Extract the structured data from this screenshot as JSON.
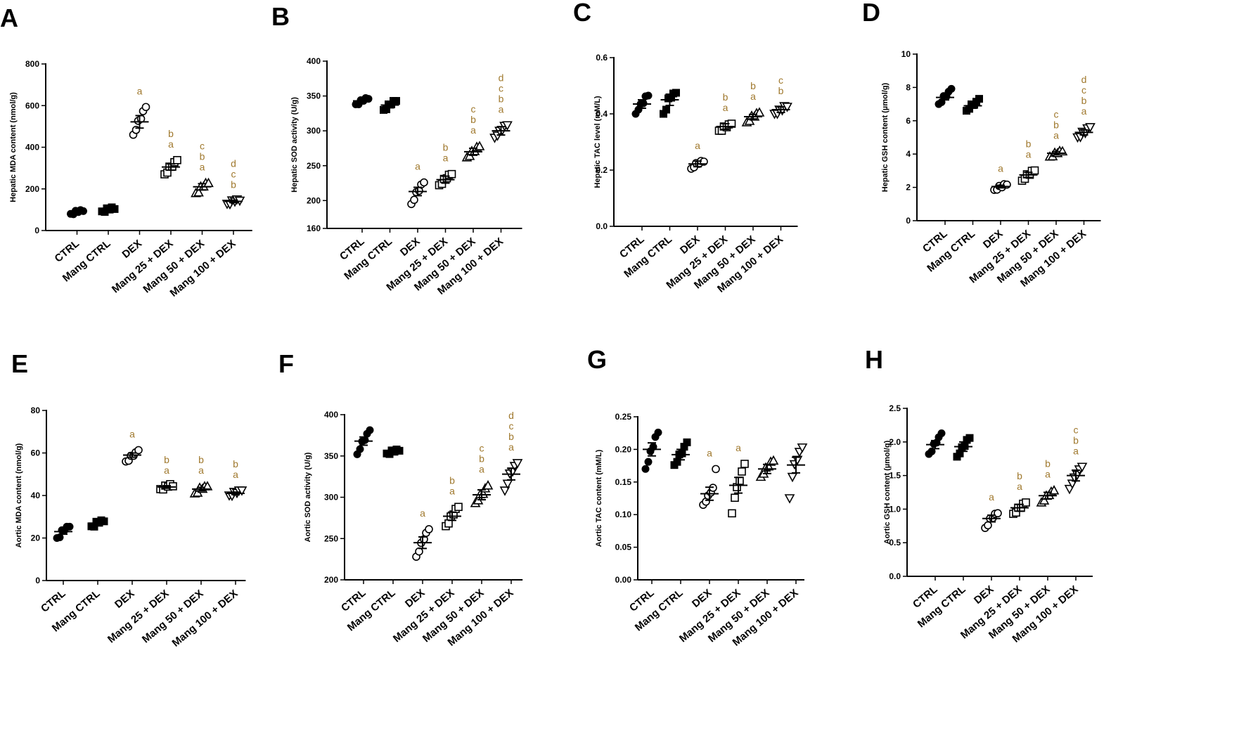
{
  "figure": {
    "colors": {
      "axis": "#000000",
      "significance": "#a0792e",
      "filled": "#000000",
      "open": "#ffffff"
    },
    "group_markers": [
      "filled-circle",
      "filled-square",
      "open-circle",
      "open-square",
      "open-triangle",
      "open-triangle-down"
    ]
  },
  "chart_data": [
    {
      "letter": "A",
      "type": "scatter",
      "ylabel": "Hepatic MDA content (nmol/g)",
      "ylim": [
        0,
        800
      ],
      "yticks": [
        "0",
        "200",
        "400",
        "600",
        "800"
      ],
      "categories": [
        "CTRL",
        "Mang CTRL",
        "DEX",
        "Mang 25 + DEX",
        "Mang 50 + DEX",
        "Mang 100 + DEX"
      ],
      "means": [
        90,
        100,
        522,
        305,
        210,
        140
      ],
      "sem": [
        6,
        5,
        30,
        15,
        15,
        6
      ],
      "points": [
        [
          80,
          85,
          88,
          92,
          95,
          100
        ],
        [
          92,
          96,
          100,
          104,
          108,
          110
        ],
        [
          460,
          490,
          520,
          540,
          570,
          600
        ],
        [
          270,
          285,
          300,
          310,
          325,
          345
        ],
        [
          180,
          190,
          205,
          215,
          225,
          235
        ],
        [
          128,
          133,
          138,
          142,
          146,
          150
        ]
      ],
      "labels": [
        [],
        [],
        [
          "a"
        ],
        [
          "b",
          "a"
        ],
        [
          "c",
          "b",
          "a"
        ],
        [
          "d",
          "c",
          "b"
        ]
      ]
    },
    {
      "letter": "B",
      "type": "scatter",
      "ylabel": "Hepatic SOD activity (U/g)",
      "ylim": [
        160,
        400
      ],
      "yticks": [
        "160",
        "200",
        "250",
        "300",
        "350",
        "400"
      ],
      "categories": [
        "CTRL",
        "Mang CTRL",
        "DEX",
        "Mang 25 + DEX",
        "Mang 50 + DEX",
        "Mang 100 + DEX"
      ],
      "means": [
        343,
        337,
        213,
        230,
        270,
        300
      ],
      "sem": [
        3,
        4,
        6,
        5,
        5,
        6
      ],
      "points": [
        [
          338,
          340,
          342,
          344,
          346,
          348
        ],
        [
          330,
          333,
          336,
          339,
          342,
          345
        ],
        [
          195,
          203,
          210,
          215,
          222,
          228
        ],
        [
          222,
          226,
          229,
          233,
          236,
          240
        ],
        [
          262,
          266,
          269,
          272,
          276,
          280
        ],
        [
          290,
          295,
          298,
          302,
          306,
          310
        ]
      ],
      "labels": [
        [],
        [],
        [
          "a"
        ],
        [
          "b",
          "a"
        ],
        [
          "c",
          "b",
          "a"
        ],
        [
          "d",
          "c",
          "b",
          "a"
        ]
      ]
    },
    {
      "letter": "C",
      "type": "scatter",
      "ylabel": "Hepatic TAC level (mM/L)",
      "ylim": [
        0,
        0.6
      ],
      "yticks": [
        "0.0",
        "0.2",
        "0.4",
        "0.6"
      ],
      "categories": [
        "CTRL",
        "Mang CTRL",
        "DEX",
        "Mang 25 + DEX",
        "Mang 50 + DEX",
        "Mang 100 + DEX"
      ],
      "means": [
        0.435,
        0.45,
        0.222,
        0.355,
        0.39,
        0.415
      ],
      "sem": [
        0.015,
        0.02,
        0.01,
        0.01,
        0.008,
        0.01
      ],
      "points": [
        [
          0.4,
          0.42,
          0.43,
          0.44,
          0.46,
          0.47
        ],
        [
          0.4,
          0.42,
          0.45,
          0.46,
          0.47,
          0.48
        ],
        [
          0.205,
          0.215,
          0.22,
          0.225,
          0.23,
          0.235
        ],
        [
          0.34,
          0.345,
          0.35,
          0.355,
          0.36,
          0.37
        ],
        [
          0.37,
          0.38,
          0.388,
          0.393,
          0.4,
          0.41
        ],
        [
          0.4,
          0.405,
          0.41,
          0.415,
          0.425,
          0.43
        ]
      ],
      "labels": [
        [],
        [],
        [
          "a"
        ],
        [
          "b",
          "a"
        ],
        [
          "b",
          "a"
        ],
        [
          "c",
          "b"
        ]
      ]
    },
    {
      "letter": "D",
      "type": "scatter",
      "ylabel": "Hepatic GSH content (µmol/g)",
      "ylim": [
        0,
        10
      ],
      "yticks": [
        "0",
        "2",
        "4",
        "6",
        "8",
        "10"
      ],
      "categories": [
        "CTRL",
        "Mang CTRL",
        "DEX",
        "Mang 25 + DEX",
        "Mang 50 + DEX",
        "Mang 100 + DEX"
      ],
      "means": [
        7.4,
        6.9,
        2.05,
        2.75,
        4.05,
        5.3
      ],
      "sem": [
        0.15,
        0.15,
        0.08,
        0.15,
        0.1,
        0.15
      ],
      "points": [
        [
          7.0,
          7.2,
          7.4,
          7.5,
          7.7,
          8.0
        ],
        [
          6.6,
          6.8,
          6.9,
          7.0,
          7.1,
          7.4
        ],
        [
          1.85,
          1.95,
          2.0,
          2.05,
          2.15,
          2.25
        ],
        [
          2.4,
          2.6,
          2.7,
          2.8,
          2.95,
          3.1
        ],
        [
          3.85,
          3.95,
          4.0,
          4.1,
          4.15,
          4.25
        ],
        [
          5.0,
          5.1,
          5.25,
          5.3,
          5.5,
          5.7
        ]
      ],
      "labels": [
        [],
        [],
        [
          "a"
        ],
        [
          "b",
          "a"
        ],
        [
          "c",
          "b",
          "a"
        ],
        [
          "d",
          "c",
          "b",
          "a"
        ]
      ]
    },
    {
      "letter": "E",
      "type": "scatter",
      "ylabel": "Aortic MDA content (nmol/g)",
      "ylim": [
        0,
        80
      ],
      "yticks": [
        "0",
        "20",
        "40",
        "60",
        "80"
      ],
      "categories": [
        "CTRL",
        "Mang CTRL",
        "DEX",
        "Mang 25 + DEX",
        "Mang 50 + DEX",
        "Mang 100 + DEX"
      ],
      "means": [
        23,
        27,
        59,
        44,
        43,
        41
      ],
      "sem": [
        1.2,
        0.8,
        1.0,
        0.6,
        0.8,
        0.6
      ],
      "points": [
        [
          20,
          21,
          23,
          24,
          25,
          26
        ],
        [
          25.5,
          26,
          27,
          27.5,
          28,
          28.5
        ],
        [
          56,
          57,
          58,
          59,
          60,
          62
        ],
        [
          43,
          43.5,
          44,
          44.5,
          45,
          45
        ],
        [
          41,
          42,
          43,
          43.5,
          44,
          45
        ],
        [
          40,
          40.5,
          41,
          41.5,
          42,
          43
        ]
      ],
      "labels": [
        [],
        [],
        [
          "a"
        ],
        [
          "b",
          "a"
        ],
        [
          "b",
          "a"
        ],
        [
          "b",
          "a"
        ]
      ]
    },
    {
      "letter": "F",
      "type": "scatter",
      "ylabel": "Aortic SOD activity (U/g)",
      "ylim": [
        200,
        400
      ],
      "yticks": [
        "200",
        "250",
        "300",
        "350",
        "400"
      ],
      "categories": [
        "CTRL",
        "Mang CTRL",
        "DEX",
        "Mang 25 + DEX",
        "Mang 50 + DEX",
        "Mang 100 + DEX"
      ],
      "means": [
        368,
        355,
        245,
        277,
        303,
        328
      ],
      "sem": [
        5,
        2,
        7,
        5,
        6,
        7
      ],
      "points": [
        [
          352,
          360,
          366,
          370,
          376,
          383
        ],
        [
          353,
          354,
          355,
          356,
          357,
          358
        ],
        [
          228,
          236,
          243,
          250,
          256,
          263
        ],
        [
          265,
          270,
          275,
          280,
          285,
          290
        ],
        [
          293,
          298,
          302,
          305,
          310,
          316
        ],
        [
          308,
          318,
          327,
          332,
          337,
          343
        ]
      ],
      "labels": [
        [],
        [],
        [
          "a"
        ],
        [
          "b",
          "a"
        ],
        [
          "c",
          "b",
          "a"
        ],
        [
          "d",
          "c",
          "b",
          "a"
        ]
      ]
    },
    {
      "letter": "G",
      "type": "scatter",
      "ylabel": "Aortic TAC content (mM/L)",
      "ylim": [
        0,
        0.25
      ],
      "yticks": [
        "0.00",
        "0.05",
        "0.10",
        "0.15",
        "0.20",
        "0.25"
      ],
      "categories": [
        "CTRL",
        "Mang CTRL",
        "DEX",
        "Mang 25 + DEX",
        "Mang 50 + DEX",
        "Mang 100 + DEX"
      ],
      "means": [
        0.2,
        0.192,
        0.132,
        0.145,
        0.17,
        0.176
      ],
      "sem": [
        0.01,
        0.008,
        0.01,
        0.012,
        0.007,
        0.012
      ],
      "points": [
        [
          0.17,
          0.183,
          0.195,
          0.205,
          0.218,
          0.228
        ],
        [
          0.176,
          0.183,
          0.19,
          0.195,
          0.203,
          0.213
        ],
        [
          0.115,
          0.122,
          0.127,
          0.135,
          0.14,
          0.172
        ],
        [
          0.102,
          0.128,
          0.14,
          0.153,
          0.165,
          0.18
        ],
        [
          0.158,
          0.165,
          0.17,
          0.175,
          0.18,
          0.185
        ],
        [
          0.125,
          0.16,
          0.175,
          0.185,
          0.195,
          0.205
        ]
      ],
      "labels": [
        [],
        [],
        [
          "a"
        ],
        [
          "a"
        ],
        [],
        []
      ]
    },
    {
      "letter": "H",
      "type": "scatter",
      "ylabel": "Aortic GSH content (µmol/g)",
      "ylim": [
        0,
        2.5
      ],
      "yticks": [
        "0.0",
        "0.5",
        "1.0",
        "1.5",
        "2.0",
        "2.5"
      ],
      "categories": [
        "CTRL",
        "Mang CTRL",
        "DEX",
        "Mang 25 + DEX",
        "Mang 50 + DEX",
        "Mang 100 + DEX"
      ],
      "means": [
        1.96,
        1.93,
        0.86,
        1.02,
        1.2,
        1.5
      ],
      "sem": [
        0.06,
        0.07,
        0.05,
        0.05,
        0.05,
        0.08
      ],
      "points": [
        [
          1.82,
          1.88,
          1.95,
          2.0,
          2.06,
          2.15
        ],
        [
          1.78,
          1.85,
          1.9,
          1.95,
          2.02,
          2.08
        ],
        [
          0.72,
          0.78,
          0.84,
          0.88,
          0.92,
          0.96
        ],
        [
          0.93,
          0.97,
          1.0,
          1.03,
          1.07,
          1.12
        ],
        [
          1.1,
          1.15,
          1.18,
          1.22,
          1.25,
          1.3
        ],
        [
          1.3,
          1.4,
          1.45,
          1.52,
          1.58,
          1.65
        ]
      ],
      "labels": [
        [],
        [],
        [
          "a"
        ],
        [
          "b",
          "a"
        ],
        [
          "b",
          "a"
        ],
        [
          "c",
          "b",
          "a"
        ]
      ]
    }
  ]
}
